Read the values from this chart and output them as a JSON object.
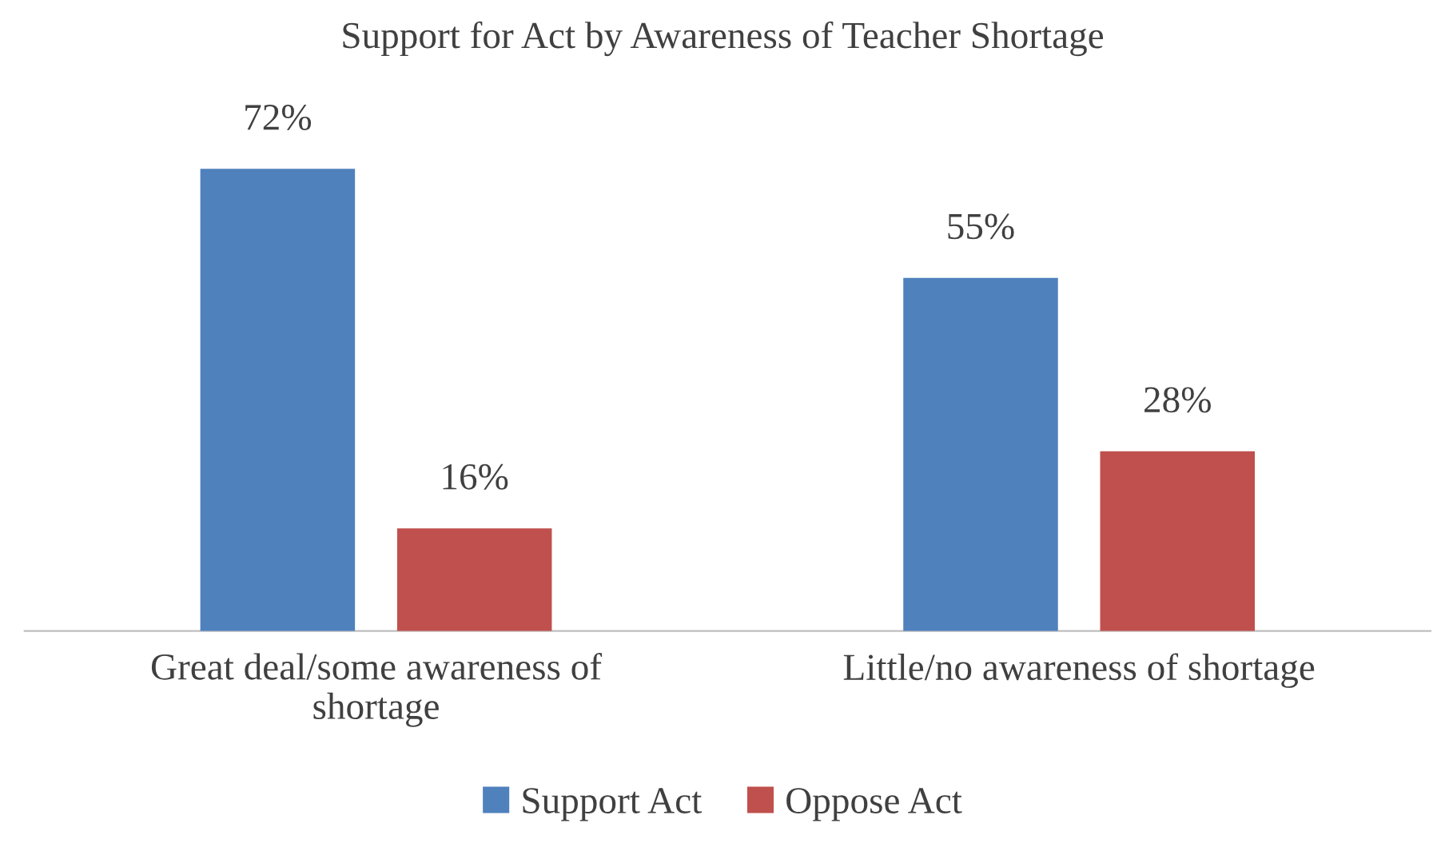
{
  "chart_data": {
    "type": "bar",
    "title": "Support for Act by Awareness of Teacher Shortage",
    "categories": [
      "Great deal/some awareness of\nshortage",
      "Little/no awareness of shortage"
    ],
    "series": [
      {
        "name": "Support Act",
        "color": "#4f81bd",
        "values": [
          72,
          55
        ],
        "value_labels": [
          "72%",
          "55%"
        ]
      },
      {
        "name": "Oppose Act",
        "color": "#c0504d",
        "values": [
          16,
          28
        ],
        "value_labels": [
          "16%",
          "28%"
        ]
      }
    ],
    "tick_labels": "x",
    "grid": false,
    "legend": "bottom"
  }
}
